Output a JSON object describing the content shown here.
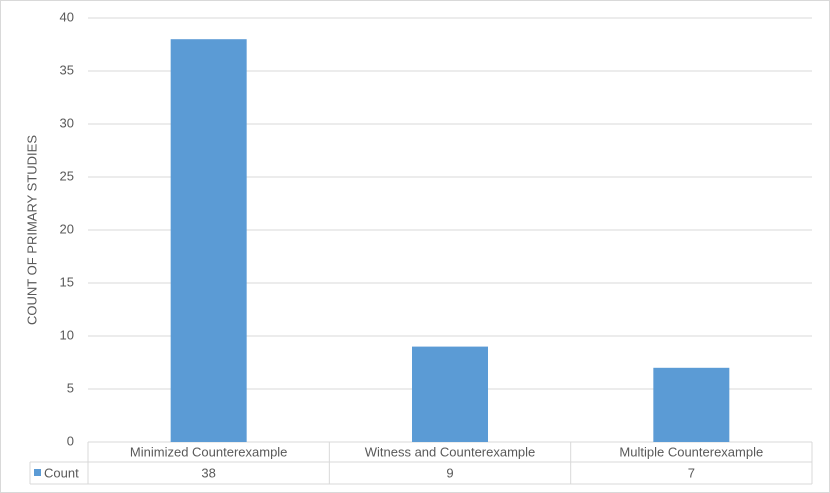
{
  "chart_data": {
    "type": "bar",
    "y_label": "COUNT OF PRIMARY STUDIES",
    "categories": [
      "Minimized Counterexample",
      "Witness and Counterexample",
      "Multiple Counterexample"
    ],
    "series": [
      {
        "name": "Count",
        "color": "#5b9bd5",
        "values": [
          38,
          9,
          7
        ]
      }
    ],
    "ylim": [
      0,
      40
    ],
    "yticks": [
      0,
      5,
      10,
      15,
      20,
      25,
      30,
      35,
      40
    ],
    "grid": true,
    "data_table": true
  }
}
